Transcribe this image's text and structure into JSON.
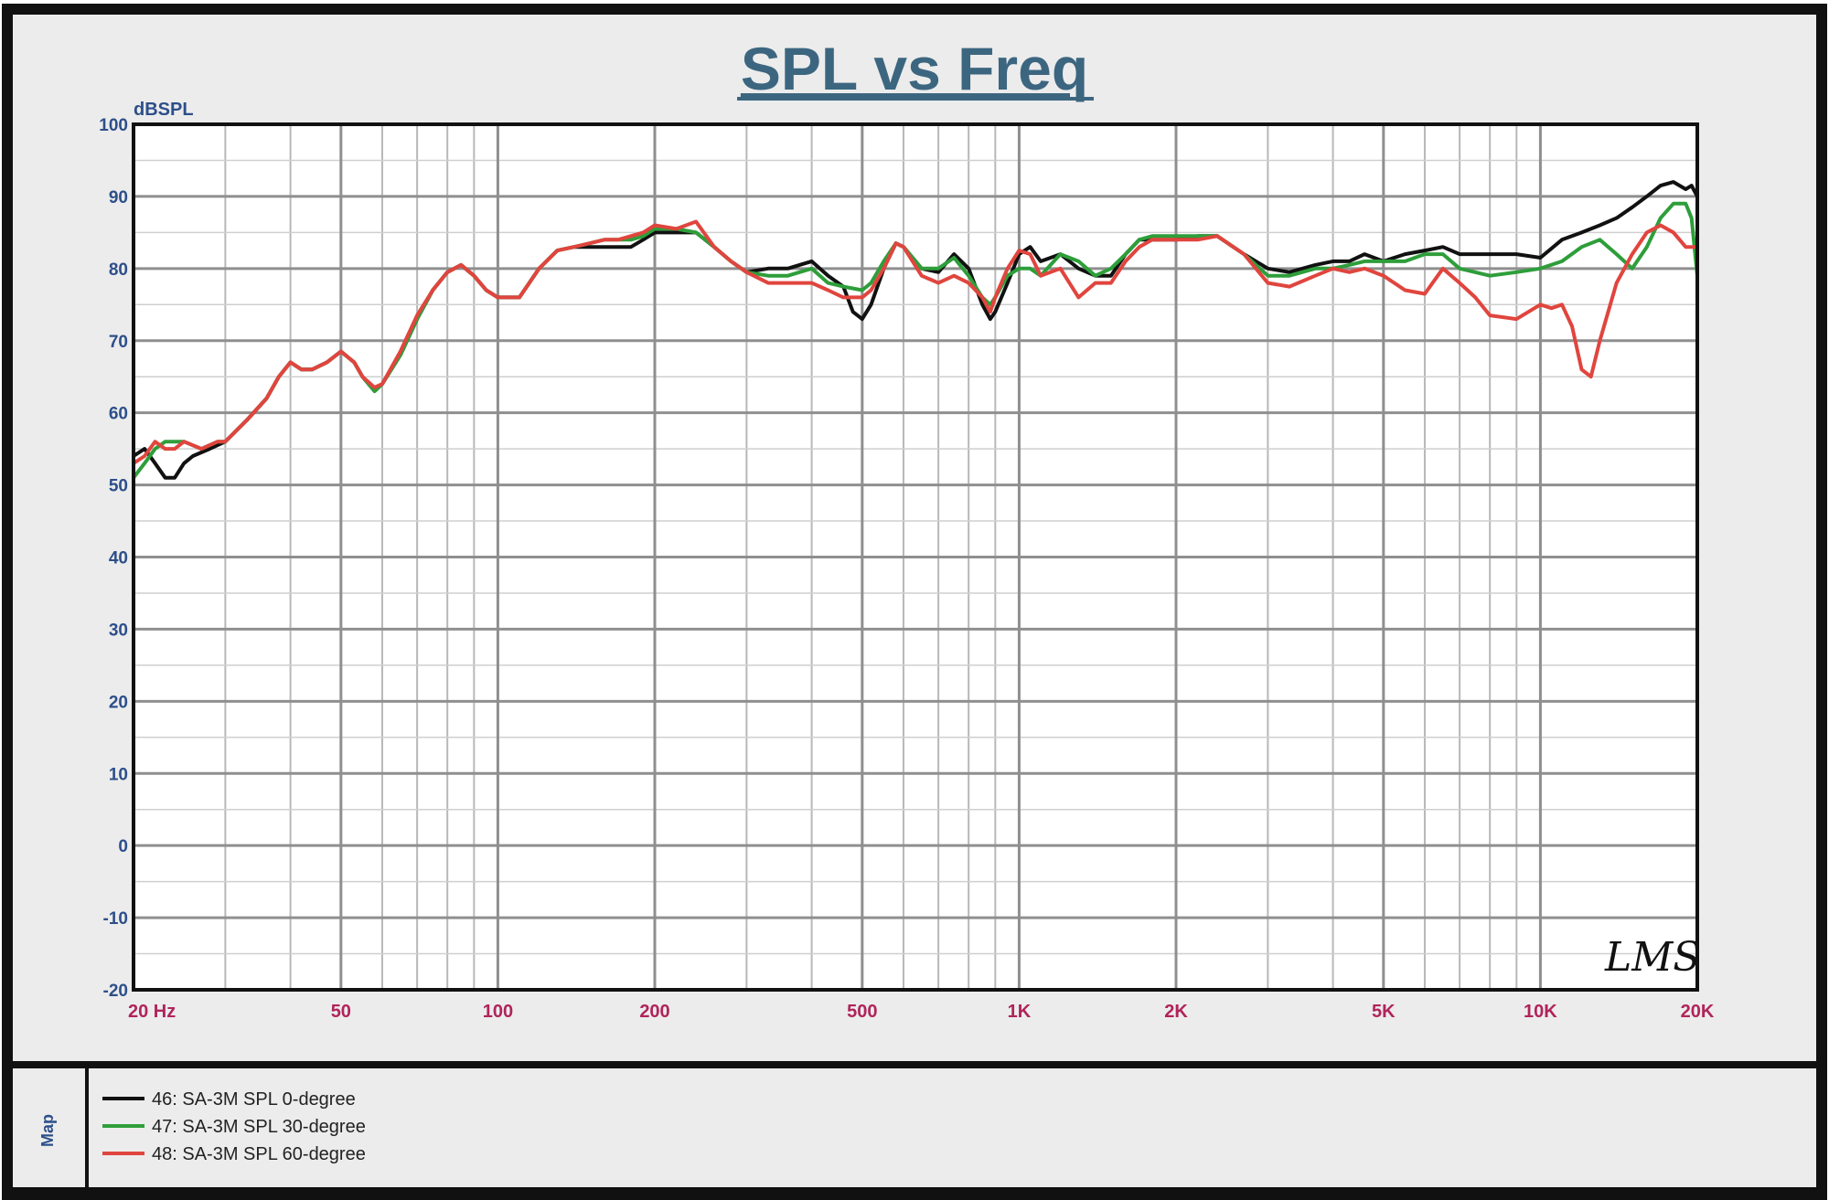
{
  "chart_data": {
    "type": "line",
    "title": "SPL vs Freq",
    "ylabel": "dBSPL",
    "xscale": "log",
    "xlim": [
      20,
      20000
    ],
    "ylim": [
      -20,
      100
    ],
    "grid": true,
    "xticks": [
      {
        "value": 20,
        "label": "20  Hz"
      },
      {
        "value": 50,
        "label": "50"
      },
      {
        "value": 100,
        "label": "100"
      },
      {
        "value": 200,
        "label": "200"
      },
      {
        "value": 500,
        "label": "500"
      },
      {
        "value": 1000,
        "label": "1K"
      },
      {
        "value": 2000,
        "label": "2K"
      },
      {
        "value": 5000,
        "label": "5K"
      },
      {
        "value": 10000,
        "label": "10K"
      },
      {
        "value": 20000,
        "label": "20K"
      }
    ],
    "yticks": [
      100,
      90,
      80,
      70,
      60,
      50,
      40,
      30,
      20,
      10,
      0,
      -10,
      -20
    ],
    "legend_position": "bottom-left",
    "legend_side_label": "Map",
    "watermark": "LMS",
    "series": [
      {
        "name": "46: SA-3M  SPL  0-degree",
        "color": "#111111",
        "points": [
          [
            20,
            54
          ],
          [
            21,
            55
          ],
          [
            22,
            53
          ],
          [
            23,
            51
          ],
          [
            24,
            51
          ],
          [
            25,
            53
          ],
          [
            26,
            54
          ],
          [
            28,
            55
          ],
          [
            30,
            56
          ],
          [
            33,
            59
          ],
          [
            36,
            62
          ],
          [
            38,
            65
          ],
          [
            40,
            67
          ],
          [
            42,
            66
          ],
          [
            44,
            66
          ],
          [
            47,
            67
          ],
          [
            50,
            68.5
          ],
          [
            53,
            67
          ],
          [
            55,
            65
          ],
          [
            58,
            63
          ],
          [
            60,
            64
          ],
          [
            65,
            68
          ],
          [
            70,
            73
          ],
          [
            75,
            77
          ],
          [
            80,
            79.5
          ],
          [
            85,
            80.5
          ],
          [
            90,
            79
          ],
          [
            95,
            77
          ],
          [
            100,
            76
          ],
          [
            110,
            76
          ],
          [
            120,
            80
          ],
          [
            130,
            82.5
          ],
          [
            140,
            83
          ],
          [
            150,
            83
          ],
          [
            160,
            83
          ],
          [
            170,
            83
          ],
          [
            180,
            83
          ],
          [
            190,
            84
          ],
          [
            200,
            85
          ],
          [
            220,
            85
          ],
          [
            240,
            85
          ],
          [
            260,
            83
          ],
          [
            280,
            81
          ],
          [
            300,
            79.5
          ],
          [
            330,
            80
          ],
          [
            360,
            80
          ],
          [
            400,
            81
          ],
          [
            430,
            79
          ],
          [
            460,
            77.5
          ],
          [
            480,
            74
          ],
          [
            500,
            73
          ],
          [
            520,
            75
          ],
          [
            550,
            80
          ],
          [
            580,
            83.5
          ],
          [
            600,
            83
          ],
          [
            650,
            80
          ],
          [
            700,
            79.5
          ],
          [
            750,
            82
          ],
          [
            800,
            80
          ],
          [
            850,
            75
          ],
          [
            880,
            73
          ],
          [
            900,
            74
          ],
          [
            950,
            78
          ],
          [
            1000,
            82
          ],
          [
            1050,
            83
          ],
          [
            1100,
            81
          ],
          [
            1200,
            82
          ],
          [
            1300,
            80
          ],
          [
            1400,
            79
          ],
          [
            1500,
            79
          ],
          [
            1600,
            82
          ],
          [
            1700,
            84
          ],
          [
            1800,
            84
          ],
          [
            2000,
            84
          ],
          [
            2200,
            84.5
          ],
          [
            2400,
            84.5
          ],
          [
            2700,
            82
          ],
          [
            3000,
            80
          ],
          [
            3300,
            79.5
          ],
          [
            3700,
            80.5
          ],
          [
            4000,
            81
          ],
          [
            4300,
            81
          ],
          [
            4600,
            82
          ],
          [
            5000,
            81
          ],
          [
            5500,
            82
          ],
          [
            6000,
            82.5
          ],
          [
            6500,
            83
          ],
          [
            7000,
            82
          ],
          [
            8000,
            82
          ],
          [
            9000,
            82
          ],
          [
            10000,
            81.5
          ],
          [
            11000,
            84
          ],
          [
            12000,
            85
          ],
          [
            13000,
            86
          ],
          [
            14000,
            87
          ],
          [
            15000,
            88.5
          ],
          [
            16000,
            90
          ],
          [
            17000,
            91.5
          ],
          [
            18000,
            92
          ],
          [
            19000,
            91
          ],
          [
            19500,
            91.5
          ],
          [
            20000,
            90
          ]
        ]
      },
      {
        "name": "47: SA-3M  SPL  30-degree",
        "color": "#2e9e3a",
        "points": [
          [
            20,
            51
          ],
          [
            21,
            53
          ],
          [
            22,
            55
          ],
          [
            23,
            56
          ],
          [
            25,
            56
          ],
          [
            27,
            55
          ],
          [
            29,
            56
          ],
          [
            30,
            56
          ],
          [
            33,
            59
          ],
          [
            36,
            62
          ],
          [
            38,
            65
          ],
          [
            40,
            67
          ],
          [
            42,
            66
          ],
          [
            44,
            66
          ],
          [
            47,
            67
          ],
          [
            50,
            68.5
          ],
          [
            53,
            67
          ],
          [
            55,
            65
          ],
          [
            58,
            63
          ],
          [
            60,
            64
          ],
          [
            65,
            68
          ],
          [
            70,
            73
          ],
          [
            75,
            77
          ],
          [
            80,
            79.5
          ],
          [
            85,
            80.5
          ],
          [
            90,
            79
          ],
          [
            95,
            77
          ],
          [
            100,
            76
          ],
          [
            110,
            76
          ],
          [
            120,
            80
          ],
          [
            130,
            82.5
          ],
          [
            140,
            83
          ],
          [
            150,
            83.5
          ],
          [
            160,
            84
          ],
          [
            170,
            84
          ],
          [
            180,
            84
          ],
          [
            190,
            84.5
          ],
          [
            200,
            85.5
          ],
          [
            220,
            85.5
          ],
          [
            240,
            85
          ],
          [
            260,
            83
          ],
          [
            280,
            81
          ],
          [
            300,
            79.5
          ],
          [
            330,
            79
          ],
          [
            360,
            79
          ],
          [
            400,
            80
          ],
          [
            430,
            78
          ],
          [
            460,
            77.5
          ],
          [
            500,
            77
          ],
          [
            520,
            78
          ],
          [
            550,
            81
          ],
          [
            580,
            83.5
          ],
          [
            600,
            83
          ],
          [
            650,
            80
          ],
          [
            700,
            80
          ],
          [
            750,
            81.5
          ],
          [
            800,
            79
          ],
          [
            850,
            76
          ],
          [
            880,
            75
          ],
          [
            900,
            76
          ],
          [
            950,
            79
          ],
          [
            1000,
            80
          ],
          [
            1050,
            80
          ],
          [
            1100,
            79
          ],
          [
            1200,
            82
          ],
          [
            1300,
            81
          ],
          [
            1400,
            79
          ],
          [
            1500,
            80
          ],
          [
            1600,
            82
          ],
          [
            1700,
            84
          ],
          [
            1800,
            84.5
          ],
          [
            2000,
            84.5
          ],
          [
            2200,
            84.5
          ],
          [
            2400,
            84.5
          ],
          [
            2700,
            82
          ],
          [
            3000,
            79
          ],
          [
            3300,
            79
          ],
          [
            3700,
            80
          ],
          [
            4000,
            80
          ],
          [
            4300,
            80.5
          ],
          [
            4600,
            81
          ],
          [
            5000,
            81
          ],
          [
            5500,
            81
          ],
          [
            6000,
            82
          ],
          [
            6500,
            82
          ],
          [
            7000,
            80
          ],
          [
            8000,
            79
          ],
          [
            9000,
            79.5
          ],
          [
            10000,
            80
          ],
          [
            11000,
            81
          ],
          [
            12000,
            83
          ],
          [
            13000,
            84
          ],
          [
            14000,
            82
          ],
          [
            15000,
            80
          ],
          [
            16000,
            83
          ],
          [
            17000,
            87
          ],
          [
            18000,
            89
          ],
          [
            19000,
            89
          ],
          [
            19500,
            87
          ],
          [
            20000,
            79
          ]
        ]
      },
      {
        "name": "48: SA-3M  SPL  60-degree",
        "color": "#e0453e",
        "points": [
          [
            20,
            53
          ],
          [
            21,
            54
          ],
          [
            22,
            56
          ],
          [
            23,
            55
          ],
          [
            24,
            55
          ],
          [
            25,
            56
          ],
          [
            27,
            55
          ],
          [
            29,
            56
          ],
          [
            30,
            56
          ],
          [
            33,
            59
          ],
          [
            36,
            62
          ],
          [
            38,
            65
          ],
          [
            40,
            67
          ],
          [
            42,
            66
          ],
          [
            44,
            66
          ],
          [
            47,
            67
          ],
          [
            50,
            68.5
          ],
          [
            53,
            67
          ],
          [
            55,
            65
          ],
          [
            58,
            63.5
          ],
          [
            60,
            64
          ],
          [
            65,
            68.5
          ],
          [
            70,
            73.5
          ],
          [
            75,
            77
          ],
          [
            80,
            79.5
          ],
          [
            85,
            80.5
          ],
          [
            90,
            79
          ],
          [
            95,
            77
          ],
          [
            100,
            76
          ],
          [
            110,
            76
          ],
          [
            120,
            80
          ],
          [
            130,
            82.5
          ],
          [
            140,
            83
          ],
          [
            150,
            83.5
          ],
          [
            160,
            84
          ],
          [
            170,
            84
          ],
          [
            180,
            84.5
          ],
          [
            190,
            85
          ],
          [
            200,
            86
          ],
          [
            220,
            85.5
          ],
          [
            240,
            86.5
          ],
          [
            260,
            83
          ],
          [
            280,
            81
          ],
          [
            300,
            79.5
          ],
          [
            330,
            78
          ],
          [
            360,
            78
          ],
          [
            400,
            78
          ],
          [
            430,
            77
          ],
          [
            460,
            76
          ],
          [
            500,
            76
          ],
          [
            520,
            77
          ],
          [
            550,
            80
          ],
          [
            580,
            83.5
          ],
          [
            600,
            83
          ],
          [
            650,
            79
          ],
          [
            700,
            78
          ],
          [
            750,
            79
          ],
          [
            800,
            78
          ],
          [
            850,
            76
          ],
          [
            880,
            74
          ],
          [
            900,
            76
          ],
          [
            950,
            80
          ],
          [
            1000,
            82.5
          ],
          [
            1050,
            82
          ],
          [
            1100,
            79
          ],
          [
            1200,
            80
          ],
          [
            1300,
            76
          ],
          [
            1400,
            78
          ],
          [
            1500,
            78
          ],
          [
            1600,
            81
          ],
          [
            1700,
            83
          ],
          [
            1800,
            84
          ],
          [
            2000,
            84
          ],
          [
            2200,
            84
          ],
          [
            2400,
            84.5
          ],
          [
            2700,
            82
          ],
          [
            3000,
            78
          ],
          [
            3300,
            77.5
          ],
          [
            3700,
            79
          ],
          [
            4000,
            80
          ],
          [
            4300,
            79.5
          ],
          [
            4600,
            80
          ],
          [
            5000,
            79
          ],
          [
            5500,
            77
          ],
          [
            6000,
            76.5
          ],
          [
            6500,
            80
          ],
          [
            7000,
            78
          ],
          [
            7500,
            76
          ],
          [
            8000,
            73.5
          ],
          [
            9000,
            73
          ],
          [
            10000,
            75
          ],
          [
            10500,
            74.5
          ],
          [
            11000,
            75
          ],
          [
            11500,
            72
          ],
          [
            12000,
            66
          ],
          [
            12500,
            65
          ],
          [
            13000,
            70
          ],
          [
            14000,
            78
          ],
          [
            15000,
            82
          ],
          [
            16000,
            85
          ],
          [
            17000,
            86
          ],
          [
            18000,
            85
          ],
          [
            19000,
            83
          ],
          [
            19500,
            83
          ],
          [
            20000,
            83
          ]
        ]
      }
    ]
  }
}
